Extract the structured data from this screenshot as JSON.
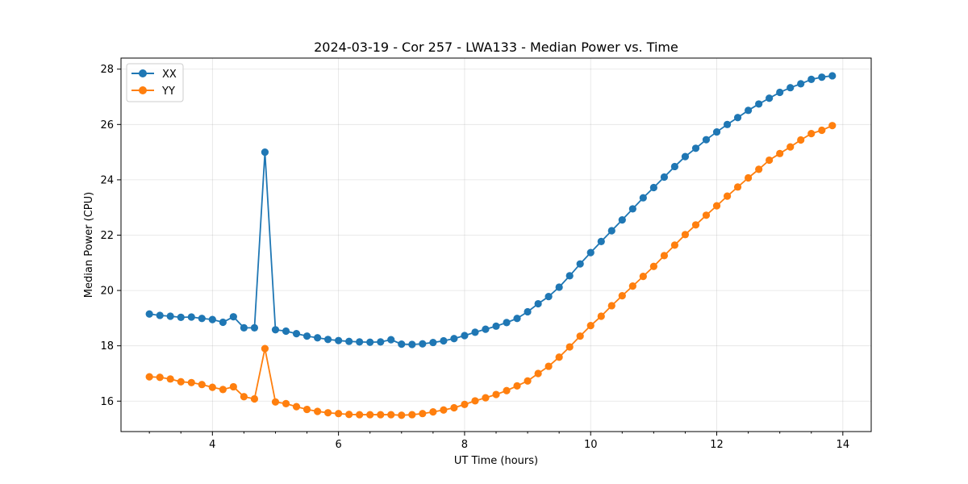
{
  "chart_data": {
    "type": "line",
    "title": "2024-03-19 - Cor 257 - LWA133 - Median Power vs. Time",
    "xlabel": "UT Time (hours)",
    "ylabel": "Median Power (CPU)",
    "xlim": [
      2.55,
      14.45
    ],
    "ylim": [
      14.9,
      28.4
    ],
    "xticks": [
      4,
      6,
      8,
      10,
      12,
      14
    ],
    "xtick_labels": [
      "4",
      "6",
      "8",
      "10",
      "12",
      "14"
    ],
    "yticks": [
      16,
      18,
      20,
      22,
      24,
      26,
      28
    ],
    "ytick_labels": [
      "16",
      "18",
      "20",
      "22",
      "24",
      "26",
      "28"
    ],
    "grid": true,
    "legend_position": "top-left",
    "x": [
      3.0,
      3.167,
      3.333,
      3.5,
      3.667,
      3.833,
      4.0,
      4.167,
      4.333,
      4.5,
      4.667,
      4.833,
      5.0,
      5.167,
      5.333,
      5.5,
      5.667,
      5.833,
      6.0,
      6.167,
      6.333,
      6.5,
      6.667,
      6.833,
      7.0,
      7.167,
      7.333,
      7.5,
      7.667,
      7.833,
      8.0,
      8.167,
      8.333,
      8.5,
      8.667,
      8.833,
      9.0,
      9.167,
      9.333,
      9.5,
      9.667,
      9.833,
      10.0,
      10.167,
      10.333,
      10.5,
      10.667,
      10.833,
      11.0,
      11.167,
      11.333,
      11.5,
      11.667,
      11.833,
      12.0,
      12.167,
      12.333,
      12.5,
      12.667,
      12.833,
      13.0,
      13.167,
      13.333,
      13.5,
      13.667,
      13.833
    ],
    "series": [
      {
        "name": "XX",
        "color": "#1f77b4",
        "values": [
          19.15,
          19.1,
          19.07,
          19.03,
          19.04,
          18.99,
          18.95,
          18.85,
          19.05,
          18.65,
          18.65,
          25.0,
          18.58,
          18.53,
          18.44,
          18.35,
          18.29,
          18.23,
          18.19,
          18.16,
          18.14,
          18.13,
          18.14,
          18.22,
          18.06,
          18.05,
          18.07,
          18.12,
          18.18,
          18.26,
          18.37,
          18.49,
          18.6,
          18.71,
          18.84,
          18.99,
          19.23,
          19.52,
          19.78,
          20.12,
          20.53,
          20.96,
          21.37,
          21.77,
          22.16,
          22.55,
          22.95,
          23.35,
          23.72,
          24.1,
          24.48,
          24.84,
          25.14,
          25.45,
          25.73,
          26.0,
          26.25,
          26.51,
          26.74,
          26.95,
          27.16,
          27.33,
          27.47,
          27.63,
          27.71,
          27.76
        ]
      },
      {
        "name": "YY",
        "color": "#ff7f0e",
        "values": [
          16.88,
          16.86,
          16.8,
          16.7,
          16.67,
          16.6,
          16.5,
          16.42,
          16.52,
          16.16,
          16.08,
          17.9,
          15.97,
          15.91,
          15.8,
          15.7,
          15.63,
          15.58,
          15.55,
          15.52,
          15.51,
          15.51,
          15.51,
          15.51,
          15.49,
          15.51,
          15.55,
          15.61,
          15.68,
          15.76,
          15.88,
          16.01,
          16.12,
          16.24,
          16.38,
          16.55,
          16.73,
          17.0,
          17.26,
          17.59,
          17.96,
          18.35,
          18.73,
          19.07,
          19.45,
          19.81,
          20.16,
          20.51,
          20.87,
          21.26,
          21.64,
          22.02,
          22.37,
          22.72,
          23.06,
          23.41,
          23.74,
          24.07,
          24.38,
          24.71,
          24.95,
          25.19,
          25.44,
          25.67,
          25.79,
          25.96
        ]
      }
    ]
  }
}
